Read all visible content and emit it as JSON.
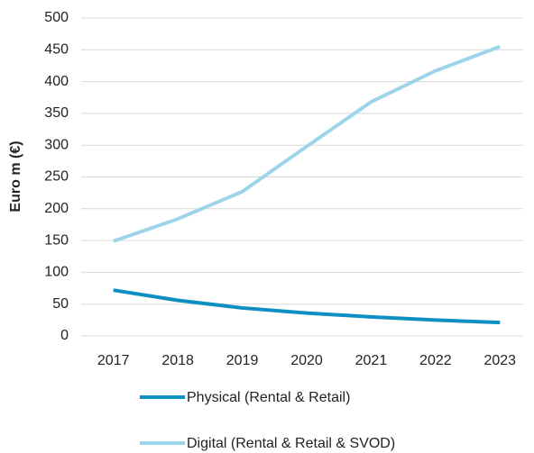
{
  "chart_data": {
    "type": "line",
    "y_label": "Euro m (€)",
    "categories": [
      "2017",
      "2018",
      "2019",
      "2020",
      "2021",
      "2022",
      "2023"
    ],
    "series": [
      {
        "name": "Physical (Rental & Retail)",
        "color": "#0e8fc3",
        "values": [
          72,
          56,
          44,
          36,
          30,
          25,
          21
        ]
      },
      {
        "name": "Digital (Rental & Retail & SVOD)",
        "color": "#9dd4ea",
        "values": [
          149,
          184,
          227,
          298,
          368,
          417,
          455
        ]
      }
    ],
    "ylim": [
      0,
      500
    ],
    "yticks": [
      0,
      50,
      100,
      150,
      200,
      250,
      300,
      350,
      400,
      450,
      500
    ],
    "grid": true
  }
}
